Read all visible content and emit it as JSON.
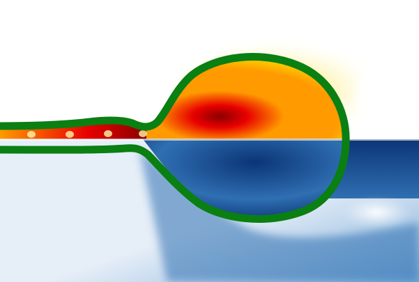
{
  "colors": {
    "background": "#ffffff",
    "outline": "#0a7f12",
    "hot_light": "#fff7a8",
    "hot_yellow": "#ffd400",
    "hot_orange": "#ff9a00",
    "hot_red": "#e80000",
    "hot_dark": "#8a0000",
    "cold_light": "#e6eef8",
    "cold_mid": "#7eaed8",
    "cold_blue": "#2f6fb2",
    "cold_dark": "#0b3576"
  },
  "icons": {
    "upper_field": "temperature-colormap-field",
    "lower_field": "velocity-colormap-field",
    "interface": "droplet-interface-outline"
  }
}
